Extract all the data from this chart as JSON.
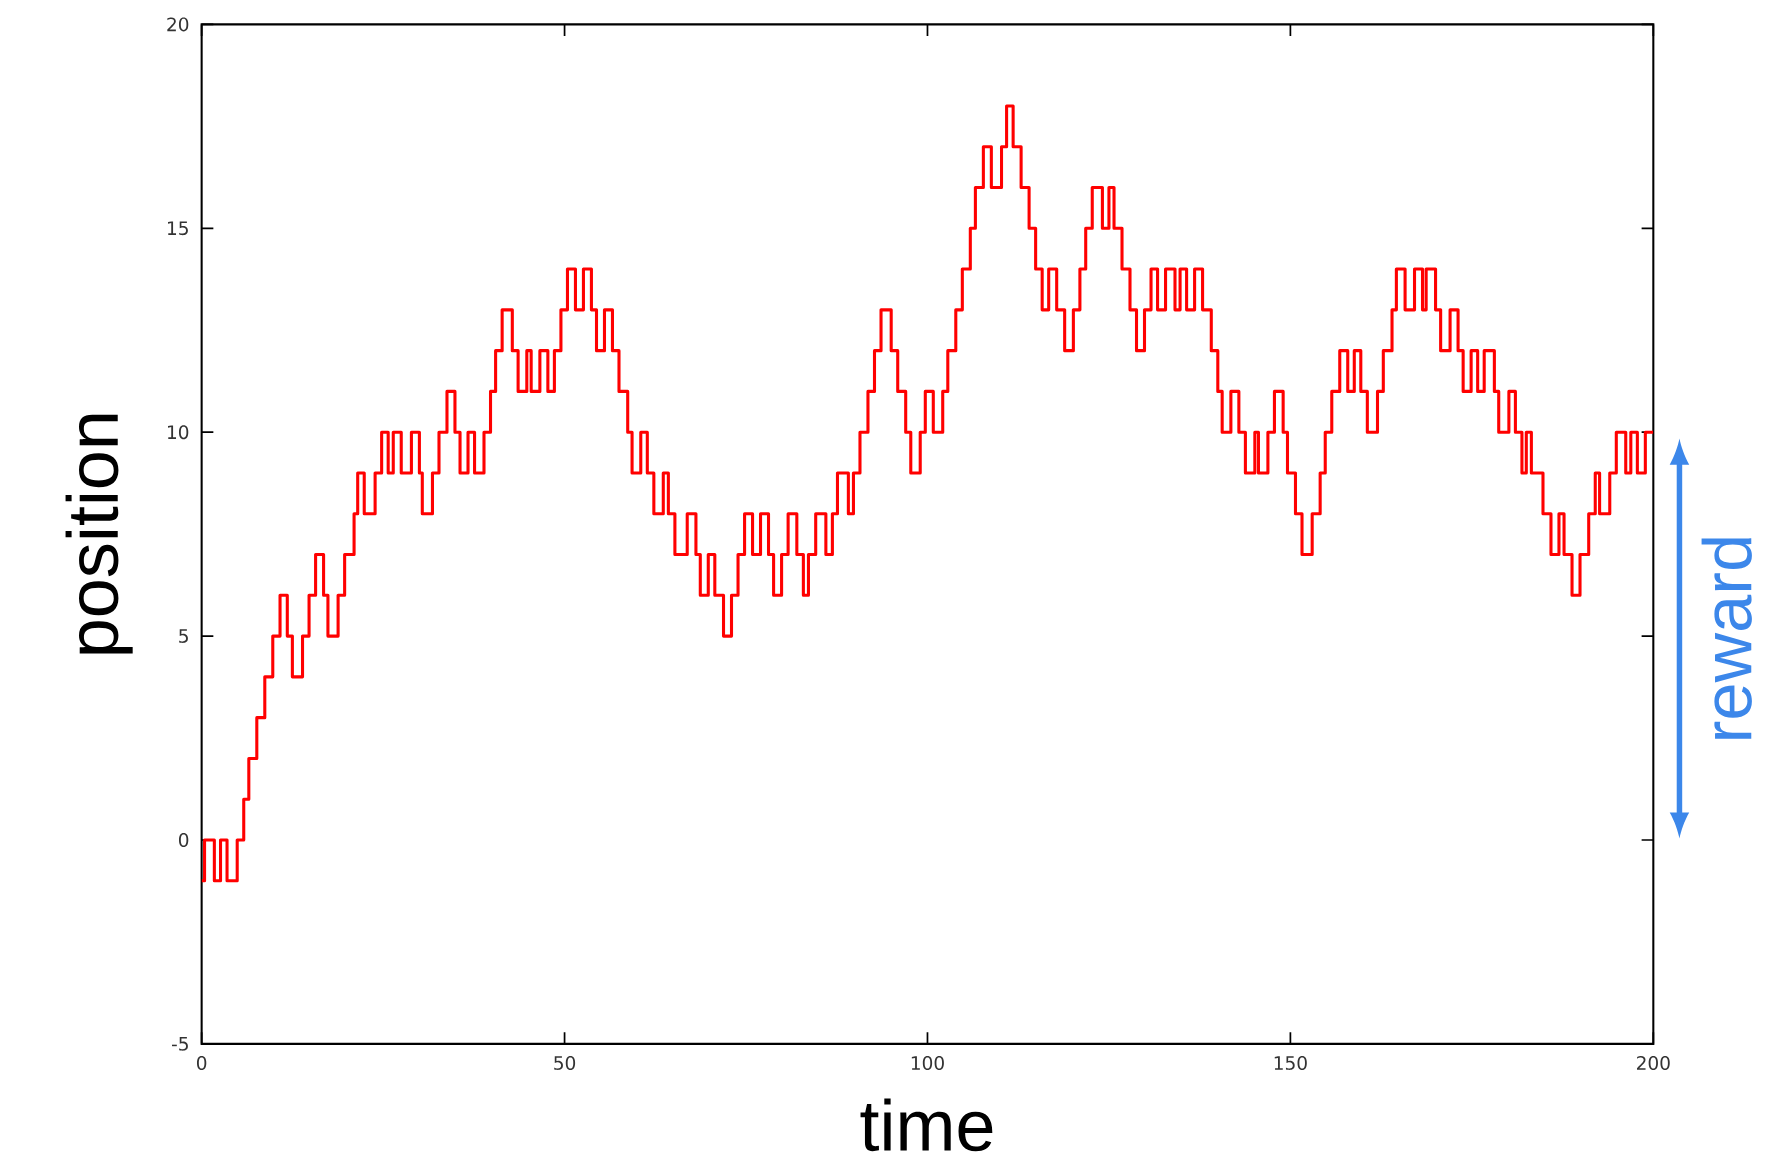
{
  "chart_data": {
    "type": "step",
    "xlabel": "time",
    "ylabel": "position",
    "xlim": [
      0,
      200
    ],
    "ylim": [
      -5,
      20
    ],
    "xticks": [
      0,
      50,
      100,
      150,
      200
    ],
    "yticks": [
      -5,
      0,
      5,
      10,
      15,
      20
    ],
    "annotations": [
      "reward"
    ],
    "series": [
      {
        "color": "#ff0000",
        "x": [
          0,
          0.4,
          1.75,
          2.6,
          3.5,
          4.9,
          5.8,
          6.5,
          7.6,
          8.7,
          9.8,
          10.8,
          11.8,
          12.5,
          13.9,
          14.8,
          15.7,
          16.8,
          17.4,
          18.8,
          19.7,
          21.0,
          21.5,
          22.4,
          23.9,
          24.8,
          25.7,
          26.4,
          27.5,
          28.9,
          30.0,
          30.4,
          31.8,
          32.7,
          33.8,
          34.9,
          35.6,
          36.7,
          37.6,
          38.9,
          39.8,
          40.5,
          41.4,
          42.8,
          43.6,
          44.8,
          45.4,
          46.6,
          47.7,
          48.6,
          49.5,
          50.4,
          51.5,
          52.6,
          53.7,
          54.4,
          55.5,
          56.6,
          57.5,
          58.7,
          59.3,
          60.5,
          61.4,
          62.3,
          63.6,
          64.3,
          65.2,
          66.9,
          68.1,
          68.7,
          69.8,
          70.7,
          71.9,
          73.0,
          73.9,
          74.8,
          75.9,
          77.0,
          78.1,
          78.8,
          79.9,
          80.8,
          82.0,
          82.9,
          83.6,
          84.6,
          86.0,
          86.9,
          87.6,
          89.1,
          89.8,
          90.7,
          91.8,
          92.7,
          93.6,
          95.0,
          95.9,
          97.0,
          97.7,
          99.0,
          99.7,
          100.8,
          102.1,
          102.8,
          103.9,
          104.8,
          105.9,
          106.6,
          107.7,
          108.8,
          110.2,
          110.9,
          111.8,
          112.9,
          114.0,
          114.9,
          115.8,
          116.7,
          117.8,
          118.9,
          120.1,
          121.0,
          121.8,
          122.7,
          124.1,
          125.0,
          125.7,
          126.8,
          127.9,
          128.8,
          129.9,
          130.8,
          131.7,
          132.8,
          134.1,
          134.8,
          135.7,
          136.8,
          137.9,
          139.1,
          140.0,
          140.6,
          141.8,
          142.9,
          143.8,
          145.1,
          145.6,
          146.9,
          147.8,
          149.0,
          149.6,
          150.7,
          151.6,
          153.0,
          154.1,
          154.8,
          155.7,
          156.8,
          157.9,
          158.8,
          159.7,
          160.6,
          162.0,
          162.8,
          164.0,
          164.6,
          165.8,
          167.1,
          168.2,
          168.7,
          170.0,
          170.7,
          172.0,
          173.1,
          173.8,
          174.9,
          175.8,
          176.7,
          178.1,
          178.7,
          180.1,
          181.0,
          181.9,
          182.5,
          183.2,
          184.8,
          185.9,
          187.0,
          187.7,
          188.8,
          189.9,
          191.1,
          192.0,
          192.6,
          194.0,
          194.9,
          196.2,
          196.9,
          197.8,
          198.9,
          200
        ],
        "values": [
          -1,
          0,
          -1,
          0,
          -1,
          0,
          1,
          2,
          3,
          4,
          5,
          6,
          5,
          4,
          5,
          6,
          7,
          6,
          5,
          6,
          7,
          8,
          9,
          8,
          9,
          10,
          9,
          10,
          9,
          10,
          9,
          8,
          9,
          10,
          11,
          10,
          9,
          10,
          9,
          10,
          11,
          12,
          13,
          12,
          11,
          12,
          11,
          12,
          11,
          12,
          13,
          14,
          13,
          14,
          13,
          12,
          13,
          12,
          11,
          10,
          9,
          10,
          9,
          8,
          9,
          8,
          7,
          8,
          7,
          6,
          7,
          6,
          5,
          6,
          7,
          8,
          7,
          8,
          7,
          6,
          7,
          8,
          7,
          6,
          7,
          8,
          7,
          8,
          9,
          8,
          9,
          10,
          11,
          12,
          13,
          12,
          11,
          10,
          9,
          10,
          11,
          10,
          11,
          12,
          13,
          14,
          15,
          16,
          17,
          16,
          17,
          18,
          17,
          16,
          15,
          14,
          13,
          14,
          13,
          12,
          13,
          14,
          15,
          16,
          15,
          16,
          15,
          14,
          13,
          12,
          13,
          14,
          13,
          14,
          13,
          14,
          13,
          14,
          13,
          12,
          11,
          10,
          11,
          10,
          9,
          10,
          9,
          10,
          11,
          10,
          9,
          8,
          7,
          8,
          9,
          10,
          11,
          12,
          11,
          12,
          11,
          10,
          11,
          12,
          13,
          14,
          13,
          14,
          13,
          14,
          13,
          12,
          13,
          12,
          11,
          12,
          11,
          12,
          11,
          10,
          11,
          10,
          9,
          10,
          9,
          8,
          7,
          8,
          7,
          6,
          7,
          8,
          9,
          8,
          9,
          10,
          9,
          10,
          9,
          10,
          10
        ]
      }
    ]
  }
}
